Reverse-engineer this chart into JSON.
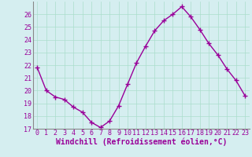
{
  "x": [
    0,
    1,
    2,
    3,
    4,
    5,
    6,
    7,
    8,
    9,
    10,
    11,
    12,
    13,
    14,
    15,
    16,
    17,
    18,
    19,
    20,
    21,
    22,
    23
  ],
  "y": [
    21.8,
    20.0,
    19.5,
    19.3,
    18.7,
    18.3,
    17.5,
    17.1,
    17.6,
    18.8,
    20.5,
    22.2,
    23.5,
    24.7,
    25.5,
    26.0,
    26.6,
    25.8,
    24.8,
    23.7,
    22.8,
    21.7,
    20.8,
    19.6
  ],
  "line_color": "#990099",
  "marker": "+",
  "marker_color": "#990099",
  "marker_size": 4,
  "marker_linewidth": 1.0,
  "xlabel": "Windchill (Refroidissement éolien,°C)",
  "xlabel_fontsize": 7,
  "ylim": [
    17,
    27
  ],
  "xlim": [
    -0.5,
    23.5
  ],
  "yticks": [
    17,
    18,
    19,
    20,
    21,
    22,
    23,
    24,
    25,
    26
  ],
  "xticks": [
    0,
    1,
    2,
    3,
    4,
    5,
    6,
    7,
    8,
    9,
    10,
    11,
    12,
    13,
    14,
    15,
    16,
    17,
    18,
    19,
    20,
    21,
    22,
    23
  ],
  "grid_color": "#aaddcc",
  "bg_color": "#d5eef0",
  "tick_label_color": "#990099",
  "tick_label_fontsize": 6,
  "line_width": 1.0,
  "spine_color": "#888888"
}
